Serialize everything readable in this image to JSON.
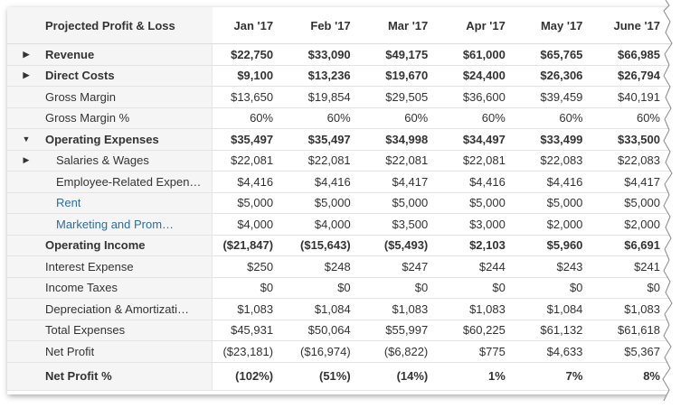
{
  "header": {
    "title": "Projected Profit & Loss",
    "months": [
      "Jan '17",
      "Feb '17",
      "Mar '17",
      "Apr '17",
      "May '17",
      "June '17"
    ]
  },
  "rows": [
    {
      "label": "Revenue",
      "values": [
        "$22,750",
        "$33,090",
        "$49,175",
        "$61,000",
        "$65,765",
        "$66,985"
      ]
    },
    {
      "label": "Direct Costs",
      "values": [
        "$9,100",
        "$13,236",
        "$19,670",
        "$24,400",
        "$26,306",
        "$26,794"
      ]
    },
    {
      "label": "Gross Margin",
      "values": [
        "$13,650",
        "$19,854",
        "$29,505",
        "$36,600",
        "$39,459",
        "$40,191"
      ]
    },
    {
      "label": "Gross Margin %",
      "values": [
        "60%",
        "60%",
        "60%",
        "60%",
        "60%",
        "60%"
      ]
    },
    {
      "label": "Operating Expenses",
      "values": [
        "$35,497",
        "$35,497",
        "$34,998",
        "$34,497",
        "$33,499",
        "$33,500"
      ]
    },
    {
      "label": "Salaries & Wages",
      "values": [
        "$22,081",
        "$22,081",
        "$22,081",
        "$22,081",
        "$22,083",
        "$22,083"
      ]
    },
    {
      "label": "Employee-Related Expen…",
      "values": [
        "$4,416",
        "$4,416",
        "$4,417",
        "$4,416",
        "$4,416",
        "$4,417"
      ]
    },
    {
      "label": "Rent",
      "values": [
        "$5,000",
        "$5,000",
        "$5,000",
        "$5,000",
        "$5,000",
        "$5,000"
      ]
    },
    {
      "label": "Marketing and Prom…",
      "values": [
        "$4,000",
        "$4,000",
        "$3,500",
        "$3,000",
        "$2,000",
        "$2,000"
      ]
    },
    {
      "label": "Operating Income",
      "values": [
        "($21,847)",
        "($15,643)",
        "($5,493)",
        "$2,103",
        "$5,960",
        "$6,691"
      ]
    },
    {
      "label": "Interest Expense",
      "values": [
        "$250",
        "$248",
        "$247",
        "$244",
        "$243",
        "$241"
      ]
    },
    {
      "label": "Income Taxes",
      "values": [
        "$0",
        "$0",
        "$0",
        "$0",
        "$0",
        "$0"
      ]
    },
    {
      "label": "Depreciation & Amortizati…",
      "values": [
        "$1,083",
        "$1,084",
        "$1,083",
        "$1,083",
        "$1,084",
        "$1,083"
      ]
    },
    {
      "label": "Total Expenses",
      "values": [
        "$45,931",
        "$50,064",
        "$55,997",
        "$60,225",
        "$61,132",
        "$61,618"
      ]
    },
    {
      "label": "Net Profit",
      "values": [
        "($23,181)",
        "($16,974)",
        "($6,822)",
        "$775",
        "$4,633",
        "$5,367"
      ]
    },
    {
      "label": "Net Profit %",
      "values": [
        "(102%)",
        "(51%)",
        "(14%)",
        "1%",
        "7%",
        "8%"
      ]
    }
  ],
  "icons": {
    "collapsed": "caret-right-icon",
    "expanded": "caret-down-icon"
  },
  "colors": {
    "text": "#333333",
    "link": "#2d6da3",
    "label_column_bg": "#f5f5f5",
    "row_divider": "#e3e3e3"
  }
}
